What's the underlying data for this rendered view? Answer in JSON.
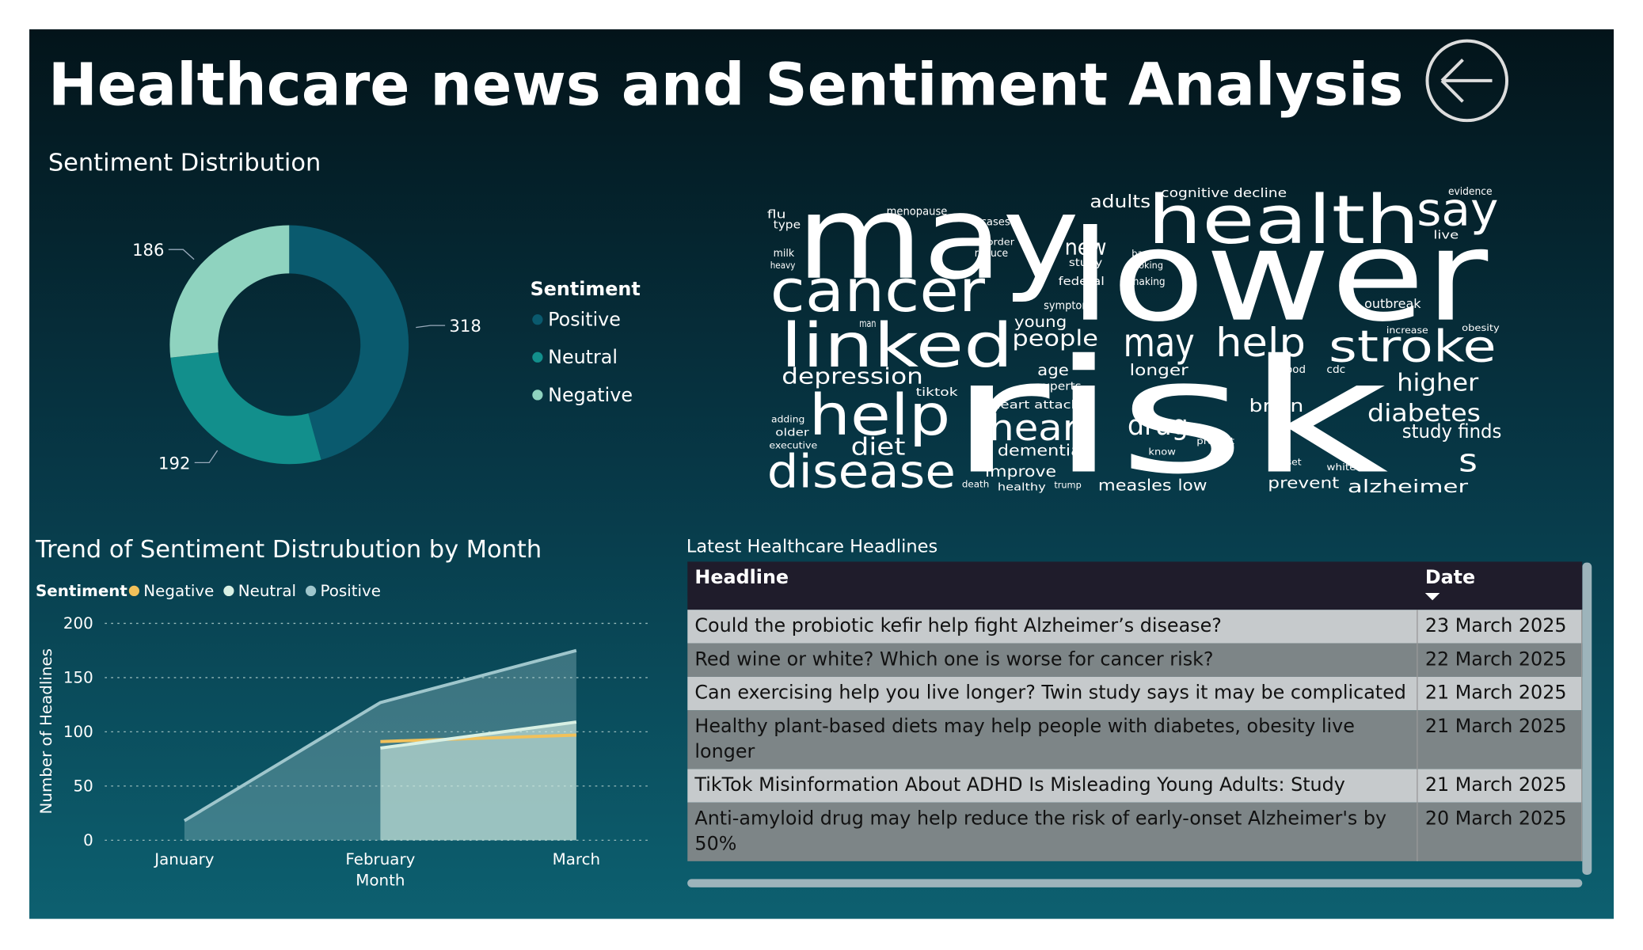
{
  "header": {
    "title": "Healthcare news and Sentiment Analysis"
  },
  "chart_data": [
    {
      "type": "donut",
      "title": "Sentiment Distribution",
      "legend_title": "Sentiment",
      "categories": [
        "Positive",
        "Neutral",
        "Negative"
      ],
      "values": [
        318,
        192,
        186
      ],
      "colors": [
        "#0a5a6e",
        "#128f8c",
        "#8fd3bf"
      ]
    },
    {
      "type": "area",
      "title": "Trend of Sentiment Distrubution by Month",
      "legend_title": "Sentiment",
      "xlabel": "Month",
      "ylabel": "Number of Headlines",
      "categories": [
        "January",
        "February",
        "March"
      ],
      "series": [
        {
          "name": "Negative",
          "color": "#f2c15a",
          "area": false,
          "values": [
            null,
            91,
            97
          ]
        },
        {
          "name": "Neutral",
          "color": "#d8f0e4",
          "area": true,
          "values": [
            null,
            85,
            109
          ]
        },
        {
          "name": "Positive",
          "color": "#9fc6cc",
          "area": true,
          "values": [
            18,
            127,
            175
          ]
        }
      ],
      "ylim": [
        0,
        200
      ],
      "yticks": [
        0,
        50,
        100,
        150,
        200
      ],
      "grid": true
    }
  ],
  "word_cloud": {
    "words": [
      "may",
      "lower",
      "health",
      "say",
      "cancer",
      "linked",
      "risk",
      "may",
      "help",
      "stroke",
      "help",
      "heart",
      "drug",
      "disease",
      "depression",
      "diet",
      "diabetes",
      "higher",
      "study finds",
      "people",
      "young",
      "adults",
      "new",
      "cognitive decline",
      "dementia",
      "heart attack",
      "measles",
      "low",
      "prevent",
      "alzheimer",
      "brain",
      "outbreak",
      "age",
      "experts",
      "tiktok",
      "longer",
      "improve",
      "menopause",
      "flu",
      "type",
      "healthy",
      "federal",
      "study",
      "symptom",
      "s",
      "blood",
      "cdc",
      "evidence",
      "live",
      "increase",
      "obesity",
      "man",
      "based",
      "making",
      "smoking",
      "know",
      "protect",
      "onset",
      "white",
      "trump",
      "death",
      "older",
      "adding",
      "executive",
      "cases",
      "order",
      "reduce",
      "milk",
      "heavy"
    ]
  },
  "table": {
    "title": "Latest Healthcare Headlines",
    "columns": [
      "Headline",
      "Date"
    ],
    "rows": [
      [
        "Could the probiotic kefir help fight Alzheimer’s disease?",
        "23 March 2025"
      ],
      [
        "Red wine or white? Which one is worse for cancer risk?",
        "22 March 2025"
      ],
      [
        "Can exercising help you live longer? Twin study says it may be complicated",
        "21 March 2025"
      ],
      [
        "Healthy plant-based diets may help people with diabetes, obesity live longer",
        "21 March 2025"
      ],
      [
        "TikTok Misinformation About ADHD Is Misleading Young Adults: Study",
        "21 March 2025"
      ],
      [
        "Anti-amyloid drug may help reduce the risk of early-onset Alzheimer's by 50%",
        "20 March 2025"
      ]
    ]
  }
}
